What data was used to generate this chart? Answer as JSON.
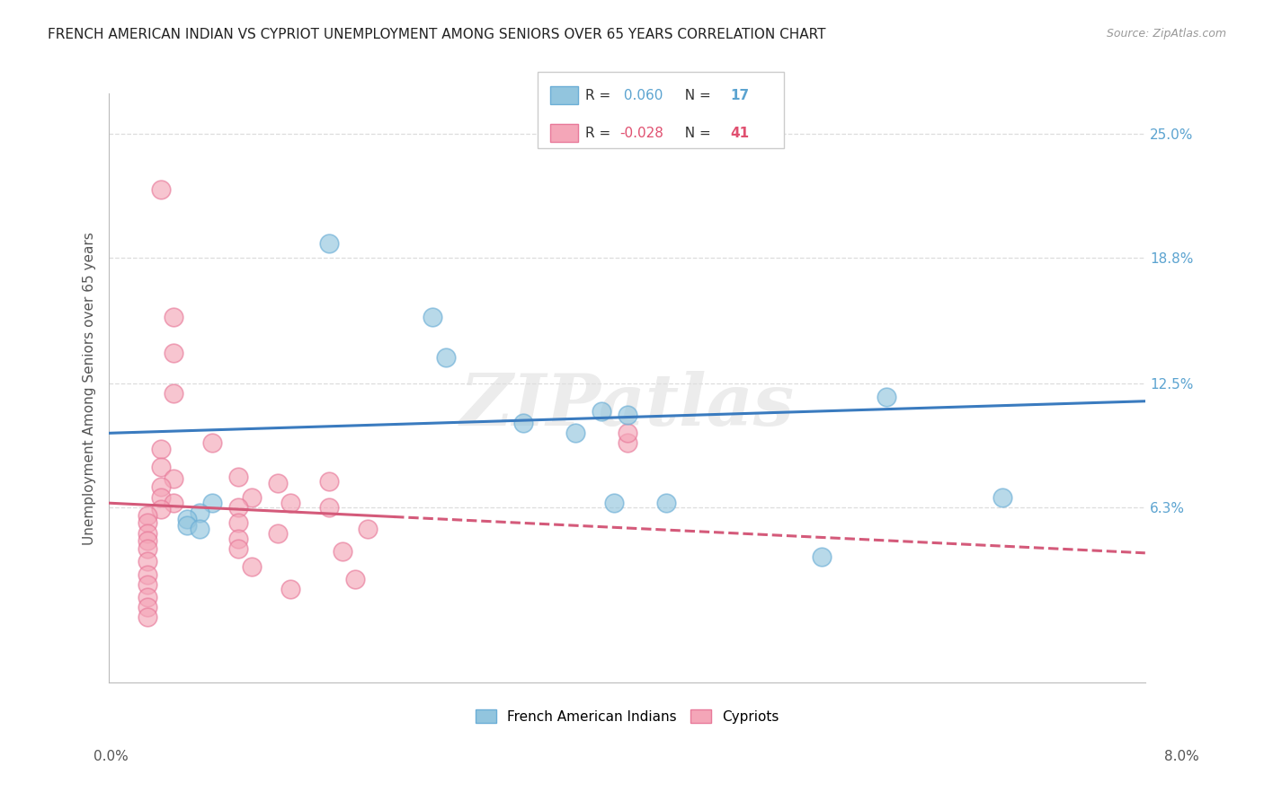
{
  "title": "FRENCH AMERICAN INDIAN VS CYPRIOT UNEMPLOYMENT AMONG SENIORS OVER 65 YEARS CORRELATION CHART",
  "source": "Source: ZipAtlas.com",
  "ylabel": "Unemployment Among Seniors over 65 years",
  "xmin": 0.0,
  "xmax": 0.08,
  "ymin": -0.025,
  "ymax": 0.27,
  "yticks": [
    0.063,
    0.125,
    0.188,
    0.25
  ],
  "ytick_labels": [
    "6.3%",
    "12.5%",
    "18.8%",
    "25.0%"
  ],
  "group1_label": "French American Indians",
  "group2_label": "Cypriots",
  "group1_color": "#92c5de",
  "group2_color": "#f4a6b8",
  "group1_edge_color": "#6baed6",
  "group2_edge_color": "#e87a9a",
  "blue_line_color": "#3a7bbf",
  "pink_line_color": "#d45a7a",
  "blue_line_x0": 0.0,
  "blue_line_y0": 0.1,
  "blue_line_x1": 0.08,
  "blue_line_y1": 0.116,
  "pink_line_x0": 0.0,
  "pink_line_y0": 0.065,
  "pink_line_x1": 0.08,
  "pink_line_y1": 0.04,
  "watermark": "ZIPatlas",
  "background_color": "#ffffff",
  "grid_color": "#dddddd",
  "title_color": "#222222",
  "right_axis_label_color": "#5ba3d0",
  "legend_R1": "0.060",
  "legend_N1": "17",
  "legend_R2": "-0.028",
  "legend_N2": "41",
  "group1_points": [
    [
      0.017,
      0.195
    ],
    [
      0.025,
      0.158
    ],
    [
      0.026,
      0.138
    ],
    [
      0.038,
      0.111
    ],
    [
      0.04,
      0.109
    ],
    [
      0.032,
      0.105
    ],
    [
      0.036,
      0.1
    ],
    [
      0.06,
      0.118
    ],
    [
      0.039,
      0.065
    ],
    [
      0.043,
      0.065
    ],
    [
      0.008,
      0.065
    ],
    [
      0.007,
      0.06
    ],
    [
      0.006,
      0.057
    ],
    [
      0.006,
      0.054
    ],
    [
      0.007,
      0.052
    ],
    [
      0.055,
      0.038
    ],
    [
      0.069,
      0.068
    ]
  ],
  "group2_points": [
    [
      0.004,
      0.222
    ],
    [
      0.005,
      0.158
    ],
    [
      0.005,
      0.14
    ],
    [
      0.005,
      0.12
    ],
    [
      0.004,
      0.092
    ],
    [
      0.004,
      0.083
    ],
    [
      0.005,
      0.077
    ],
    [
      0.004,
      0.073
    ],
    [
      0.004,
      0.068
    ],
    [
      0.005,
      0.065
    ],
    [
      0.004,
      0.062
    ],
    [
      0.003,
      0.059
    ],
    [
      0.003,
      0.055
    ],
    [
      0.003,
      0.05
    ],
    [
      0.003,
      0.046
    ],
    [
      0.003,
      0.042
    ],
    [
      0.003,
      0.036
    ],
    [
      0.003,
      0.029
    ],
    [
      0.003,
      0.024
    ],
    [
      0.003,
      0.018
    ],
    [
      0.003,
      0.013
    ],
    [
      0.003,
      0.008
    ],
    [
      0.008,
      0.095
    ],
    [
      0.01,
      0.078
    ],
    [
      0.011,
      0.068
    ],
    [
      0.01,
      0.063
    ],
    [
      0.01,
      0.055
    ],
    [
      0.01,
      0.047
    ],
    [
      0.01,
      0.042
    ],
    [
      0.011,
      0.033
    ],
    [
      0.013,
      0.075
    ],
    [
      0.014,
      0.065
    ],
    [
      0.013,
      0.05
    ],
    [
      0.014,
      0.022
    ],
    [
      0.017,
      0.076
    ],
    [
      0.017,
      0.063
    ],
    [
      0.018,
      0.041
    ],
    [
      0.019,
      0.027
    ],
    [
      0.02,
      0.052
    ],
    [
      0.04,
      0.095
    ],
    [
      0.04,
      0.1
    ]
  ]
}
